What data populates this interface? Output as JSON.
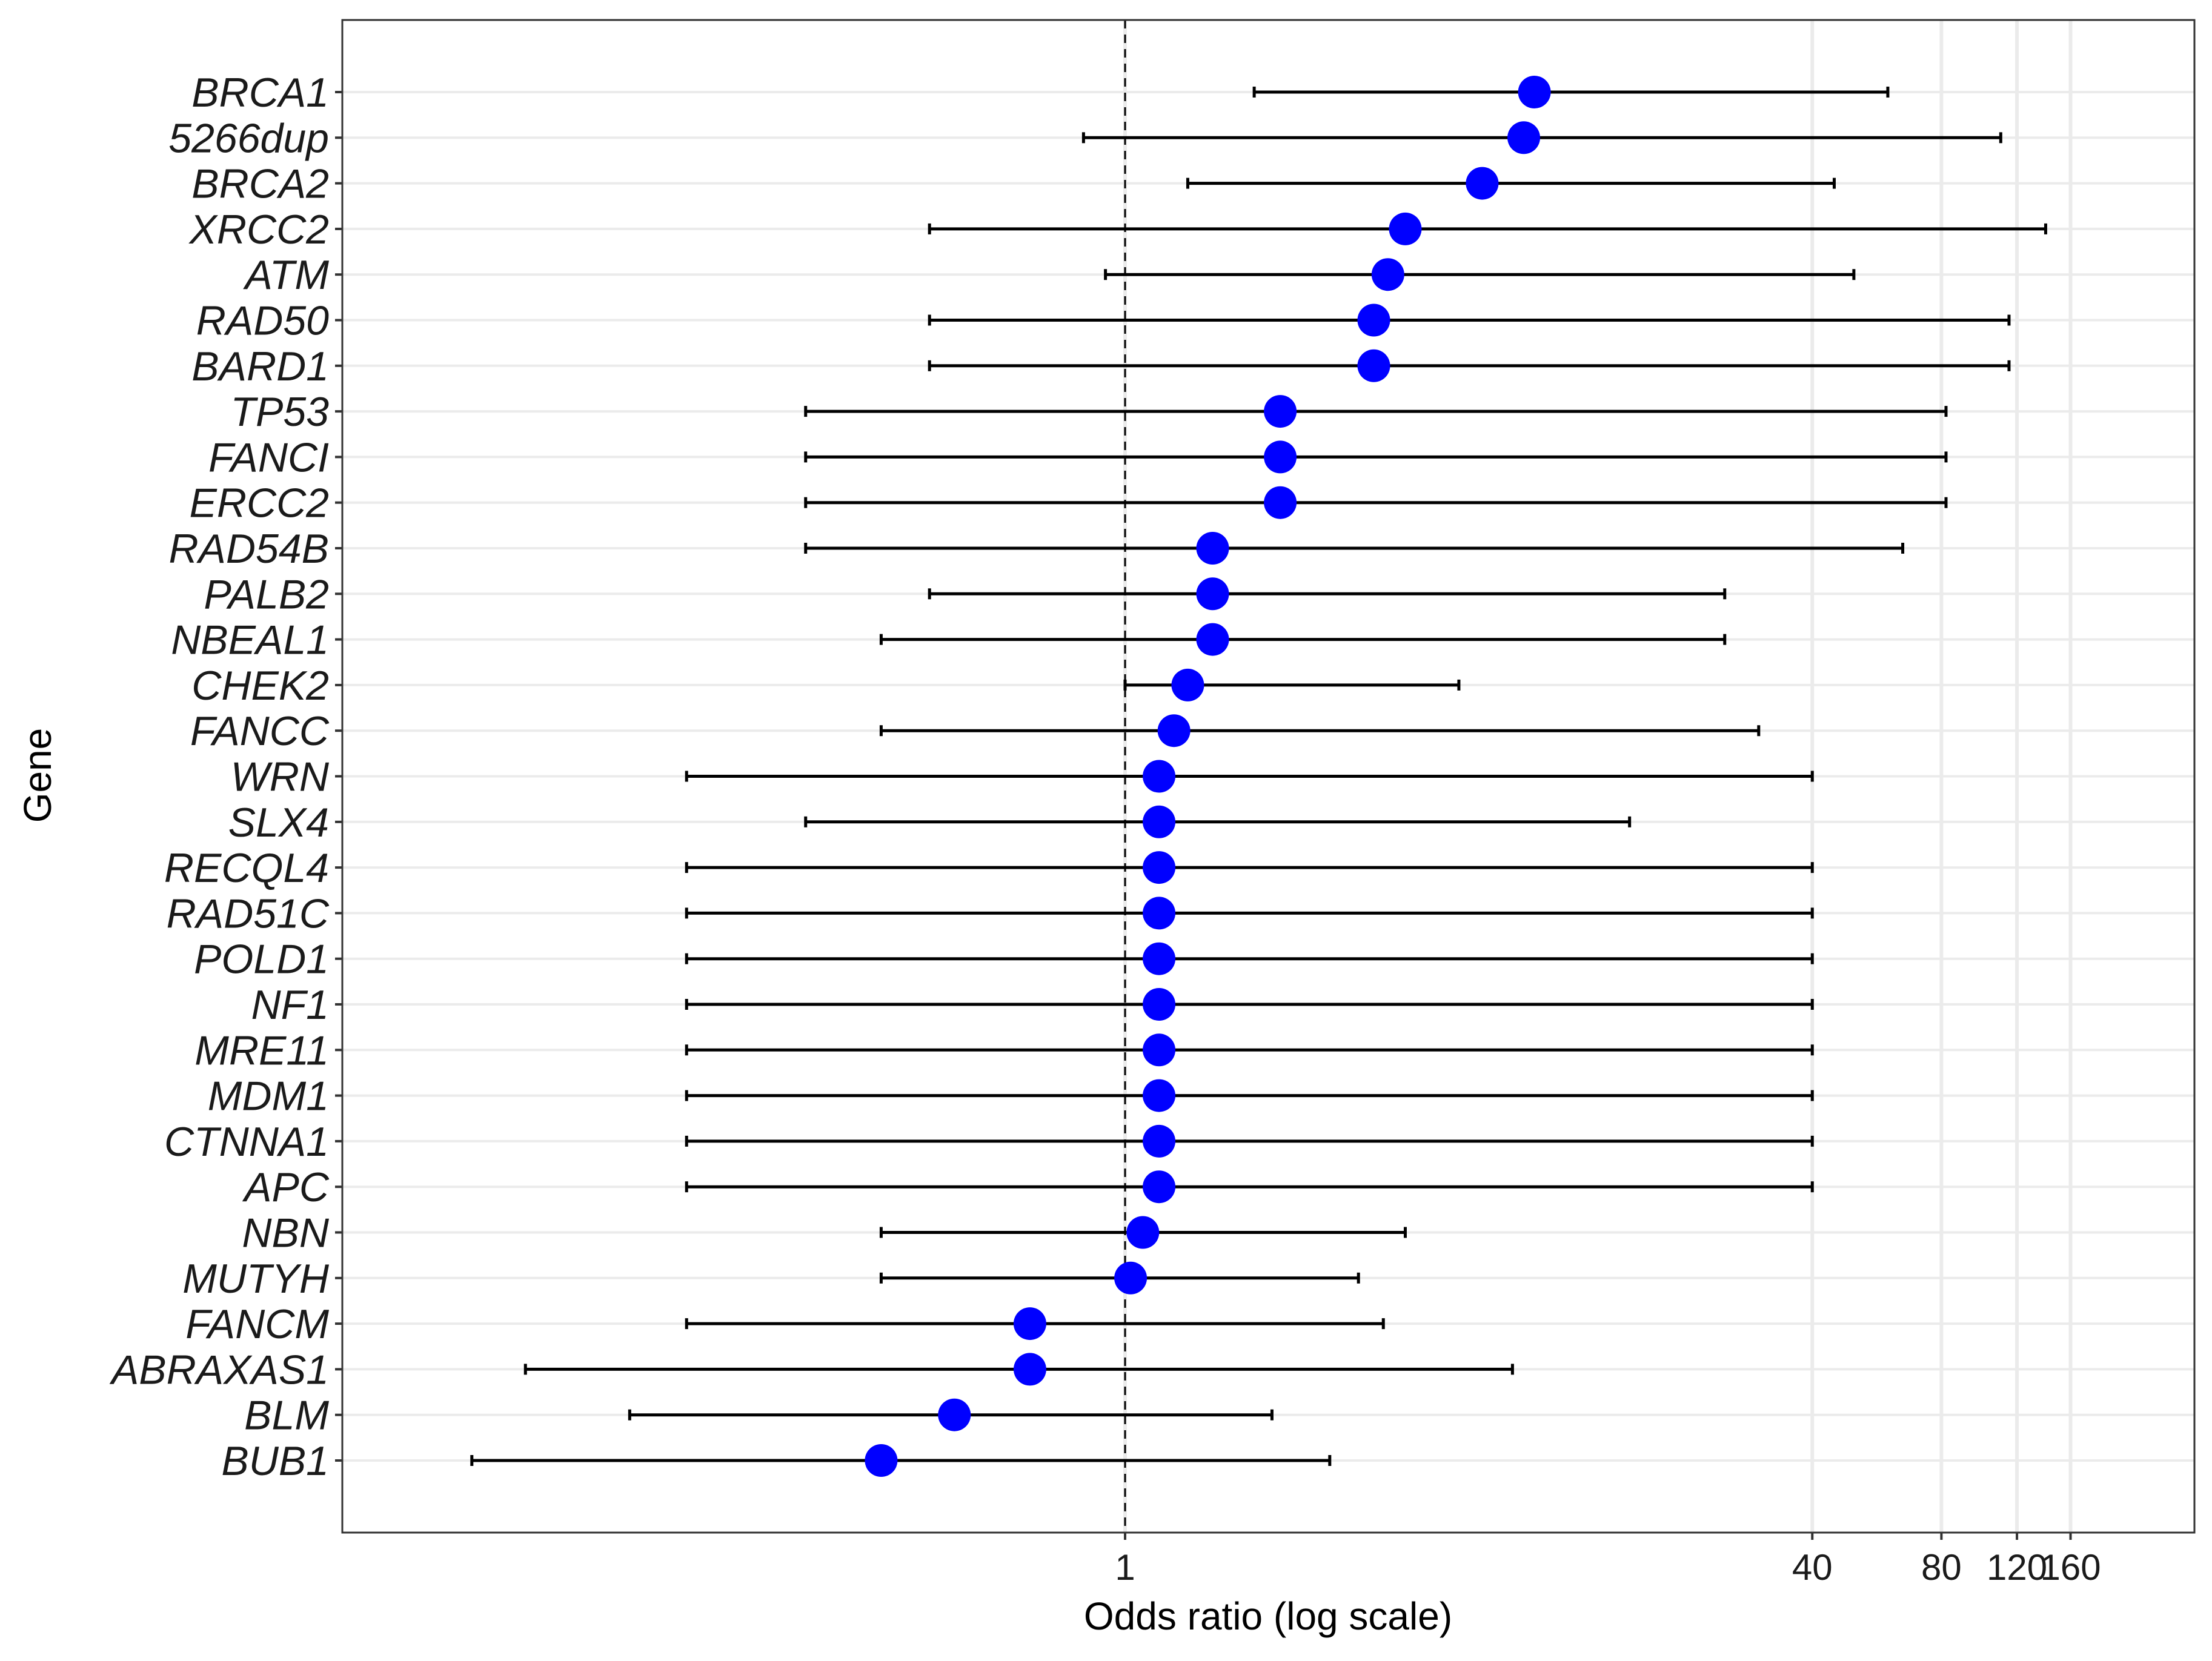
{
  "chart_data": {
    "type": "scatter",
    "subtype": "forest-plot",
    "title": "",
    "xlabel": "Odds ratio (log scale)",
    "ylabel": "Gene",
    "x_scale": "log",
    "xlim": [
      0.01,
      280
    ],
    "x_ticks": [
      {
        "value": 1,
        "label": "1"
      },
      {
        "value": 40,
        "label": "40"
      },
      {
        "value": 80,
        "label": "80"
      },
      {
        "value": 120,
        "label": "120"
      },
      {
        "value": 160,
        "label": "160"
      }
    ],
    "reference_line": {
      "x": 1,
      "style": "dashed"
    },
    "grid": true,
    "legend": "none",
    "colors": {
      "point": "#0000ff",
      "errorbar": "#000000",
      "grid": "#ebebeb",
      "panel_border": "#333333",
      "reference": "#000000"
    },
    "series": [
      {
        "rows": [
          {
            "gene": "BRCA1",
            "or": 9.0,
            "lower": 2.0,
            "upper": 60
          },
          {
            "gene": "5266dup",
            "or": 8.5,
            "lower": 0.8,
            "upper": 110
          },
          {
            "gene": "BRCA2",
            "or": 6.8,
            "lower": 1.4,
            "upper": 45
          },
          {
            "gene": "XRCC2",
            "or": 4.5,
            "lower": 0.35,
            "upper": 140
          },
          {
            "gene": "ATM",
            "or": 4.1,
            "lower": 0.9,
            "upper": 50
          },
          {
            "gene": "RAD50",
            "or": 3.8,
            "lower": 0.35,
            "upper": 115
          },
          {
            "gene": "BARD1",
            "or": 3.8,
            "lower": 0.35,
            "upper": 115
          },
          {
            "gene": "TP53",
            "or": 2.3,
            "lower": 0.18,
            "upper": 82
          },
          {
            "gene": "FANCI",
            "or": 2.3,
            "lower": 0.18,
            "upper": 82
          },
          {
            "gene": "ERCC2",
            "or": 2.3,
            "lower": 0.18,
            "upper": 82
          },
          {
            "gene": "RAD54B",
            "or": 1.6,
            "lower": 0.18,
            "upper": 65
          },
          {
            "gene": "PALB2",
            "or": 1.6,
            "lower": 0.35,
            "upper": 25
          },
          {
            "gene": "NBEAL1",
            "or": 1.6,
            "lower": 0.27,
            "upper": 25
          },
          {
            "gene": "CHEK2",
            "or": 1.4,
            "lower": 1.0,
            "upper": 6.0
          },
          {
            "gene": "FANCC",
            "or": 1.3,
            "lower": 0.27,
            "upper": 30
          },
          {
            "gene": "WRN",
            "or": 1.2,
            "lower": 0.095,
            "upper": 40
          },
          {
            "gene": "SLX4",
            "or": 1.2,
            "lower": 0.18,
            "upper": 15
          },
          {
            "gene": "RECQL4",
            "or": 1.2,
            "lower": 0.095,
            "upper": 40
          },
          {
            "gene": "RAD51C",
            "or": 1.2,
            "lower": 0.095,
            "upper": 40
          },
          {
            "gene": "POLD1",
            "or": 1.2,
            "lower": 0.095,
            "upper": 40
          },
          {
            "gene": "NF1",
            "or": 1.2,
            "lower": 0.095,
            "upper": 40
          },
          {
            "gene": "MRE11",
            "or": 1.2,
            "lower": 0.095,
            "upper": 40
          },
          {
            "gene": "MDM1",
            "or": 1.2,
            "lower": 0.095,
            "upper": 40
          },
          {
            "gene": "CTNNA1",
            "or": 1.2,
            "lower": 0.095,
            "upper": 40
          },
          {
            "gene": "APC",
            "or": 1.2,
            "lower": 0.095,
            "upper": 40
          },
          {
            "gene": "NBN",
            "or": 1.1,
            "lower": 0.27,
            "upper": 4.5
          },
          {
            "gene": "MUTYH",
            "or": 1.03,
            "lower": 0.27,
            "upper": 3.5
          },
          {
            "gene": "FANCM",
            "or": 0.6,
            "lower": 0.095,
            "upper": 4.0
          },
          {
            "gene": "ABRAXAS1",
            "or": 0.6,
            "lower": 0.04,
            "upper": 8.0
          },
          {
            "gene": "BLM",
            "or": 0.4,
            "lower": 0.07,
            "upper": 2.2
          },
          {
            "gene": "BUB1",
            "or": 0.27,
            "lower": 0.03,
            "upper": 3.0
          }
        ]
      }
    ]
  }
}
